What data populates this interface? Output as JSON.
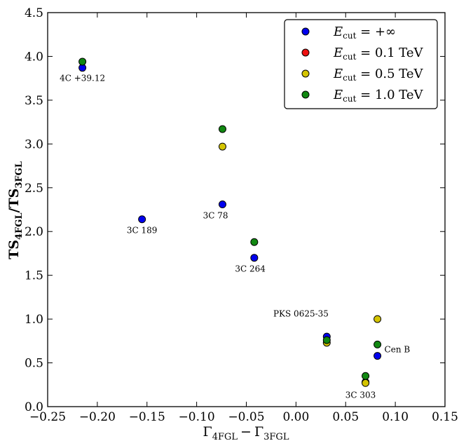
{
  "chart_data": {
    "type": "scatter",
    "xlabel": "Γ4FGL − Γ3FGL",
    "xlabel_main": "Γ",
    "xlabel_sub1": "4FGL",
    "xlabel_minus": "−",
    "xlabel_main2": "Γ",
    "xlabel_sub2": "3FGL",
    "ylabel": "TS4FGL/TS3FGL",
    "ylabel_main1": "TS",
    "ylabel_sub1": "4FGL",
    "ylabel_slash": "/TS",
    "ylabel_sub2": "3FGL",
    "xlim": [
      -0.25,
      0.15
    ],
    "ylim": [
      0.0,
      4.5
    ],
    "xticks": [
      -0.25,
      -0.2,
      -0.15,
      -0.1,
      -0.05,
      0.0,
      0.05,
      0.1,
      0.15
    ],
    "xtick_labels": [
      "−0.25",
      "−0.20",
      "−0.15",
      "−0.10",
      "−0.05",
      "0.00",
      "0.05",
      "0.10",
      "0.15"
    ],
    "yticks": [
      0.0,
      0.5,
      1.0,
      1.5,
      2.0,
      2.5,
      3.0,
      3.5,
      4.0,
      4.5
    ],
    "ytick_labels": [
      "0.0",
      "0.5",
      "1.0",
      "1.5",
      "2.0",
      "2.5",
      "3.0",
      "3.5",
      "4.0",
      "4.5"
    ],
    "legend_position": "top-right",
    "series": [
      {
        "name": "Ecut = +∞",
        "legend_sym": "E",
        "legend_sub": "cut",
        "legend_rest": " = +∞",
        "color": "#0000ee",
        "points": [
          {
            "x": -0.215,
            "y": 3.87
          },
          {
            "x": -0.155,
            "y": 2.14
          },
          {
            "x": -0.074,
            "y": 2.31
          },
          {
            "x": -0.042,
            "y": 1.7
          },
          {
            "x": 0.031,
            "y": 0.8
          },
          {
            "x": 0.082,
            "y": 0.58
          },
          {
            "x": 0.07,
            "y": 0.28
          }
        ]
      },
      {
        "name": "Ecut = 0.1 TeV",
        "legend_sym": "E",
        "legend_sub": "cut",
        "legend_rest": " = 0.1 TeV",
        "color": "#ee1111",
        "points": []
      },
      {
        "name": "Ecut = 0.5 TeV",
        "legend_sym": "E",
        "legend_sub": "cut",
        "legend_rest": " = 0.5 TeV",
        "color": "#d4c400",
        "points": [
          {
            "x": -0.074,
            "y": 2.97
          },
          {
            "x": 0.031,
            "y": 0.73
          },
          {
            "x": 0.082,
            "y": 1.0
          },
          {
            "x": 0.07,
            "y": 0.27
          }
        ]
      },
      {
        "name": "Ecut = 1.0 TeV",
        "legend_sym": "E",
        "legend_sub": "cut",
        "legend_rest": " = 1.0 TeV",
        "color": "#118811",
        "points": [
          {
            "x": -0.215,
            "y": 3.94
          },
          {
            "x": -0.074,
            "y": 3.17
          },
          {
            "x": -0.042,
            "y": 1.88
          },
          {
            "x": 0.031,
            "y": 0.76
          },
          {
            "x": 0.082,
            "y": 0.71
          },
          {
            "x": 0.07,
            "y": 0.35
          }
        ]
      }
    ],
    "annotations": [
      {
        "text": "4C +39.12",
        "x": -0.215,
        "y": 3.72,
        "anchor": "middle"
      },
      {
        "text": "3C 189",
        "x": -0.155,
        "y": 1.98,
        "anchor": "middle"
      },
      {
        "text": "3C 78",
        "x": -0.081,
        "y": 2.15,
        "anchor": "middle"
      },
      {
        "text": "3C 264",
        "x": -0.046,
        "y": 1.54,
        "anchor": "middle"
      },
      {
        "text": "PKS 0625-35",
        "x": 0.005,
        "y": 1.03,
        "anchor": "middle"
      },
      {
        "text": "Cen B",
        "x": 0.089,
        "y": 0.62,
        "anchor": "start"
      },
      {
        "text": "3C 303",
        "x": 0.065,
        "y": 0.1,
        "anchor": "middle"
      }
    ]
  }
}
